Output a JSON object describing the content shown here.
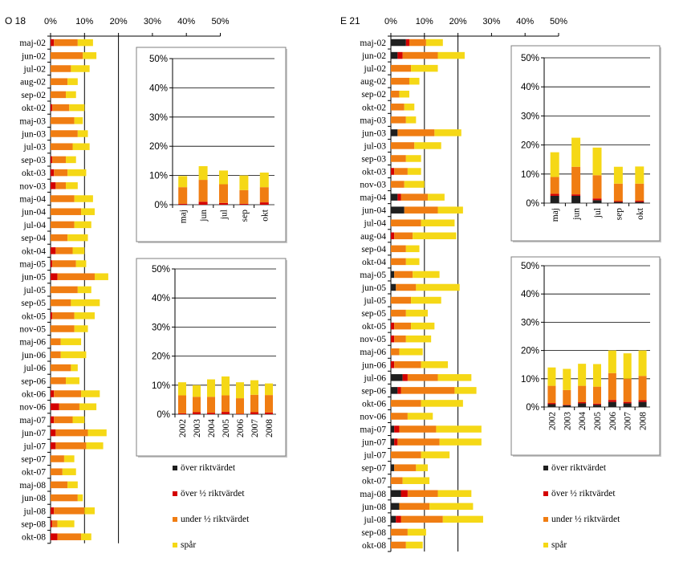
{
  "colors": {
    "over_limit": "#1f1f1f",
    "over_half": "#d40000",
    "under_half": "#f07d12",
    "trace": "#f5d816",
    "axis": "#000000",
    "inset_border": "#7f7f7f",
    "inset_fill": "#ffffff"
  },
  "legend": {
    "items": [
      {
        "label": "över riktvärdet",
        "color_key": "over_limit"
      },
      {
        "label": "över ½ riktvärdet",
        "color_key": "over_half"
      },
      {
        "label": "under ½ riktvärdet",
        "color_key": "under_half"
      },
      {
        "label": "spår",
        "color_key": "trace"
      }
    ]
  },
  "chart_data": [
    {
      "id": "o18-main",
      "type": "bar",
      "orientation": "horizontal",
      "stacked": true,
      "title": "O 18",
      "x_ticks": [
        "0%",
        "10%",
        "20%",
        "30%",
        "40%",
        "50%"
      ],
      "xlim": [
        0,
        50
      ],
      "categories": [
        "maj-02",
        "jun-02",
        "jul-02",
        "aug-02",
        "sep-02",
        "okt-02",
        "maj-03",
        "jun-03",
        "jul-03",
        "sep-03",
        "okt-03",
        "nov-03",
        "maj-04",
        "jun-04",
        "jul-04",
        "sep-04",
        "okt-04",
        "maj-05",
        "jun-05",
        "jul-05",
        "sep-05",
        "okt-05",
        "nov-05",
        "maj-06",
        "jun-06",
        "jul-06",
        "sep-06",
        "okt-06",
        "nov-06",
        "maj-07",
        "jun-07",
        "jul-07",
        "sep-07",
        "okt-07",
        "maj-08",
        "jun-08",
        "jul-08",
        "sep-08",
        "okt-08"
      ],
      "series": [
        {
          "name": "över riktvärdet",
          "color_key": "over_limit",
          "values": [
            0,
            0,
            0,
            0,
            0,
            0,
            0,
            0,
            0,
            0,
            0,
            0,
            0,
            0,
            0,
            0,
            0,
            0,
            0,
            0,
            0,
            0,
            0,
            0,
            0,
            0,
            0,
            0,
            0,
            0,
            0,
            0,
            0,
            0,
            0,
            0,
            0,
            0,
            0
          ]
        },
        {
          "name": "över ½ riktvärdet",
          "color_key": "over_half",
          "values": [
            1,
            0,
            0,
            0,
            0,
            0.5,
            0,
            0,
            0,
            0.5,
            1,
            1.5,
            0,
            0,
            0,
            0,
            1.5,
            0.5,
            2,
            0,
            0,
            0.5,
            0,
            0,
            0,
            0,
            0,
            1,
            2.5,
            1,
            1.5,
            1.5,
            0,
            0,
            0,
            0,
            1,
            0.5,
            2
          ]
        },
        {
          "name": "under ½ riktvärdet",
          "color_key": "under_half",
          "values": [
            7,
            9.5,
            6,
            5,
            4.5,
            5,
            7,
            8,
            6.5,
            4,
            4,
            3,
            7,
            9,
            7,
            5,
            5,
            7,
            11,
            8,
            6,
            6.5,
            7,
            3,
            3,
            6,
            4.5,
            8,
            6,
            5.5,
            9.5,
            9,
            4,
            3.5,
            5,
            8,
            9,
            1.5,
            7
          ]
        },
        {
          "name": "spår",
          "color_key": "trace",
          "values": [
            4.5,
            4,
            5.5,
            3,
            3,
            4.5,
            2.5,
            3,
            5,
            3,
            5.5,
            3.5,
            5.5,
            4,
            5,
            6,
            3.5,
            3,
            4,
            4,
            8.5,
            6,
            4,
            6,
            7.5,
            2,
            4,
            5.5,
            5,
            3.5,
            5.5,
            5,
            3,
            4,
            3,
            1.5,
            3,
            5,
            3
          ]
        }
      ]
    },
    {
      "id": "o18-inset-month",
      "type": "bar",
      "stacked": true,
      "categories": [
        "maj",
        "jun",
        "jul",
        "sep",
        "okt"
      ],
      "y_ticks": [
        "0%",
        "10%",
        "20%",
        "30%",
        "40%",
        "50%"
      ],
      "ylim": [
        0,
        50
      ],
      "series": [
        {
          "name": "över riktvärdet",
          "color_key": "over_limit",
          "values": [
            0,
            0,
            0,
            0,
            0
          ]
        },
        {
          "name": "över ½ riktvärdet",
          "color_key": "over_half",
          "values": [
            0.3,
            1,
            0.6,
            0.3,
            0.8
          ]
        },
        {
          "name": "under ½ riktvärdet",
          "color_key": "under_half",
          "values": [
            5.7,
            7.5,
            6.4,
            4.7,
            5.2
          ]
        },
        {
          "name": "spår",
          "color_key": "trace",
          "values": [
            3.8,
            4.7,
            4.7,
            5,
            5
          ]
        }
      ]
    },
    {
      "id": "o18-inset-year",
      "type": "bar",
      "stacked": true,
      "categories": [
        "2002",
        "2003",
        "2004",
        "2005",
        "2006",
        "2007",
        "2008"
      ],
      "y_ticks": [
        "0%",
        "10%",
        "20%",
        "30%",
        "40%",
        "50%"
      ],
      "ylim": [
        0,
        50
      ],
      "series": [
        {
          "name": "över riktvärdet",
          "color_key": "over_limit",
          "values": [
            0,
            0,
            0,
            0,
            0,
            0,
            0
          ]
        },
        {
          "name": "över ½ riktvärdet",
          "color_key": "over_half",
          "values": [
            0.3,
            0.7,
            0.5,
            0.8,
            0.2,
            0.7,
            0.6
          ]
        },
        {
          "name": "under ½ riktvärdet",
          "color_key": "under_half",
          "values": [
            6.2,
            5.3,
            5.5,
            5.7,
            5.3,
            6,
            6
          ]
        },
        {
          "name": "spår",
          "color_key": "trace",
          "values": [
            4.5,
            4,
            6,
            6.5,
            5.5,
            5,
            4
          ]
        }
      ]
    },
    {
      "id": "e21-main",
      "type": "bar",
      "orientation": "horizontal",
      "stacked": true,
      "title": "E 21",
      "x_ticks": [
        "0%",
        "10%",
        "20%",
        "30%",
        "40%",
        "50%"
      ],
      "xlim": [
        0,
        50
      ],
      "categories": [
        "maj-02",
        "jun-02",
        "jul-02",
        "aug-02",
        "sep-02",
        "okt-02",
        "maj-03",
        "jun-03",
        "jul-03",
        "sep-03",
        "okt-03",
        "nov-03",
        "maj-04",
        "jun-04",
        "jul-04",
        "aug-04",
        "sep-04",
        "okt-04",
        "maj-05",
        "jun-05",
        "jul-05",
        "sep-05",
        "okt-05",
        "nov-05",
        "maj-06",
        "jun-06",
        "jul-06",
        "sep-06",
        "okt-06",
        "nov-06",
        "maj-07",
        "jun-07",
        "jul-07",
        "sep-07",
        "okt-07",
        "maj-08",
        "jun-08",
        "jul-08",
        "sep-08",
        "okt-08"
      ],
      "series": [
        {
          "name": "över riktvärdet",
          "color_key": "over_limit",
          "values": [
            4.5,
            2,
            0,
            0,
            0,
            0,
            0,
            2,
            0,
            0,
            0,
            0,
            2,
            4,
            0,
            0,
            0,
            0,
            1,
            1.5,
            0,
            0,
            0,
            0,
            0,
            0,
            3.5,
            2,
            0,
            0,
            1,
            1,
            0,
            1,
            0,
            3,
            2.5,
            1.5,
            0,
            0
          ]
        },
        {
          "name": "över ½ riktvärdet",
          "color_key": "over_half",
          "values": [
            1,
            1.5,
            0,
            0,
            0,
            0,
            0,
            0,
            0,
            0,
            1,
            0,
            1,
            0,
            0,
            1,
            0,
            0,
            0,
            0,
            0,
            0,
            1,
            1,
            0,
            1,
            1.5,
            1,
            0,
            0,
            1.5,
            1,
            0,
            0,
            0,
            2,
            0,
            1.5,
            0,
            0
          ]
        },
        {
          "name": "under ½ riktvärdet",
          "color_key": "under_half",
          "values": [
            5,
            10.5,
            6,
            5.5,
            2.5,
            4,
            4.5,
            11,
            7,
            4.5,
            4,
            4,
            8,
            10,
            9,
            5.5,
            4.5,
            4.5,
            5.5,
            6,
            6,
            4.5,
            5,
            3.5,
            2.5,
            8,
            9,
            16,
            9,
            5,
            11,
            12.5,
            9,
            6.5,
            3.5,
            9,
            9,
            12.5,
            5,
            4.5
          ]
        },
        {
          "name": "spår",
          "color_key": "trace",
          "values": [
            5,
            8,
            8,
            3,
            3,
            3,
            3,
            8,
            8,
            4.5,
            4,
            6,
            5,
            7.5,
            10,
            13,
            4,
            4,
            8,
            13,
            9,
            6.5,
            7,
            7.5,
            7,
            8,
            10,
            6.5,
            12.5,
            7.5,
            13.5,
            12.5,
            8.5,
            3.5,
            8,
            10,
            13,
            12,
            5.5,
            5
          ]
        }
      ]
    },
    {
      "id": "e21-inset-month",
      "type": "bar",
      "stacked": true,
      "categories": [
        "maj",
        "jun",
        "jul",
        "sep",
        "okt"
      ],
      "y_ticks": [
        "0%",
        "10%",
        "20%",
        "30%",
        "40%",
        "50%"
      ],
      "ylim": [
        0,
        50
      ],
      "series": [
        {
          "name": "över riktvärdet",
          "color_key": "over_limit",
          "values": [
            2.5,
            2.5,
            1,
            0.4,
            0.4
          ]
        },
        {
          "name": "över ½ riktvärdet",
          "color_key": "over_half",
          "values": [
            0.7,
            0.5,
            0.6,
            0.3,
            0.4
          ]
        },
        {
          "name": "under ½ riktvärdet",
          "color_key": "under_half",
          "values": [
            5.8,
            9.5,
            8,
            6,
            5.9
          ]
        },
        {
          "name": "spår",
          "color_key": "trace",
          "values": [
            8.5,
            10,
            9.5,
            5.8,
            5.9
          ]
        }
      ]
    },
    {
      "id": "e21-inset-year",
      "type": "bar",
      "stacked": true,
      "categories": [
        "2002",
        "2003",
        "2004",
        "2005",
        "2006",
        "2007",
        "2008"
      ],
      "y_ticks": [
        "0%",
        "10%",
        "20%",
        "30%",
        "40%",
        "50%"
      ],
      "ylim": [
        0,
        50
      ],
      "series": [
        {
          "name": "över riktvärdet",
          "color_key": "over_limit",
          "values": [
            1,
            0.6,
            1.3,
            0.8,
            1.8,
            1.3,
            1.8
          ]
        },
        {
          "name": "över ½ riktvärdet",
          "color_key": "over_half",
          "values": [
            0.4,
            0.2,
            0.4,
            0.4,
            0.7,
            0.5,
            0.6
          ]
        },
        {
          "name": "under ½ riktvärdet",
          "color_key": "under_half",
          "values": [
            6.1,
            5.2,
            5.8,
            6,
            9.5,
            8.2,
            8.6
          ]
        },
        {
          "name": "spår",
          "color_key": "trace",
          "values": [
            6.5,
            7.5,
            7.8,
            8,
            8,
            9,
            9
          ]
        }
      ]
    }
  ]
}
